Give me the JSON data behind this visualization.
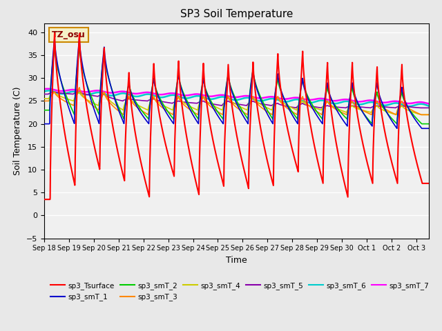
{
  "title": "SP3 Soil Temperature",
  "ylabel": "Soil Temperature (C)",
  "xlabel": "Time",
  "annotation": "TZ_osu",
  "ylim": [
    -5,
    42
  ],
  "xlim": [
    0,
    15.5
  ],
  "x_tick_labels": [
    "Sep 18",
    "Sep 19",
    "Sep 20",
    "Sep 21",
    "Sep 22",
    "Sep 23",
    "Sep 24",
    "Sep 25",
    "Sep 26",
    "Sep 27",
    "Sep 28",
    "Sep 29",
    "Sep 30",
    "Oct 1",
    "Oct 2",
    "Oct 3"
  ],
  "series_colors": {
    "sp3_Tsurface": "#FF0000",
    "sp3_smT_1": "#0000CC",
    "sp3_smT_2": "#00CC00",
    "sp3_smT_3": "#FF8800",
    "sp3_smT_4": "#CCCC00",
    "sp3_smT_5": "#8800AA",
    "sp3_smT_6": "#00CCCC",
    "sp3_smT_7": "#FF00FF"
  },
  "background_color": "#E8E8E8",
  "plot_bg_color": "#F0F0F0",
  "grid_color": "#FFFFFF"
}
